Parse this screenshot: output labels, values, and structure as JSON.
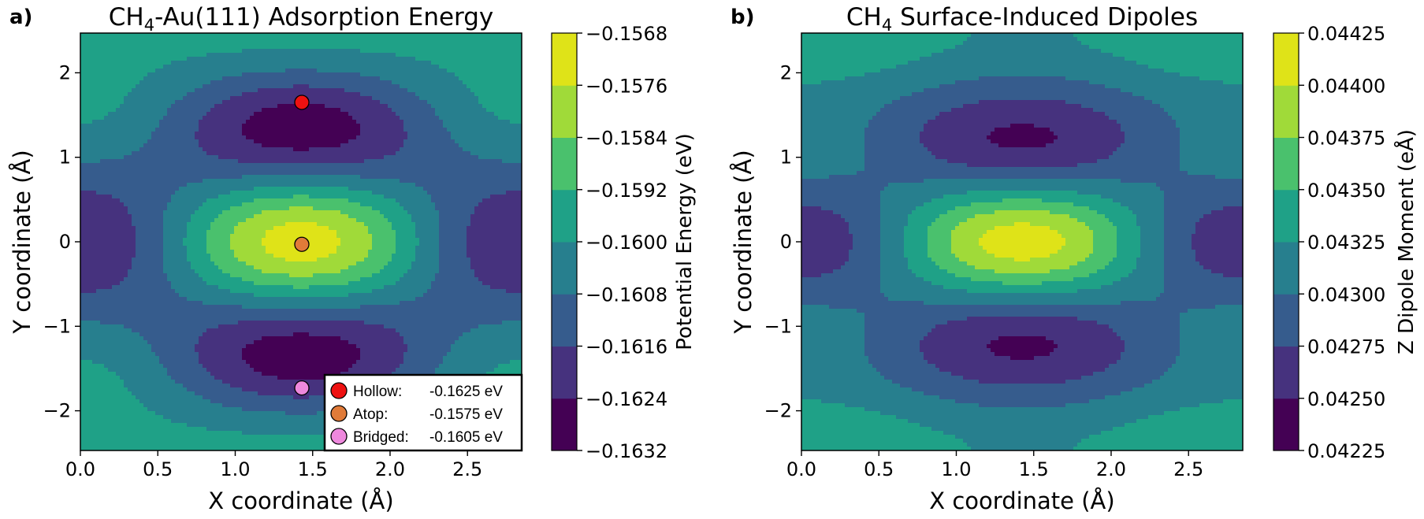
{
  "chart_data": [
    {
      "type": "heatmap",
      "panel_label": "a)",
      "title_prefix": "CH",
      "title_sub": "4",
      "title_suffix": "-Au(111) Adsorption Energy",
      "xlabel": "X coordinate (Å)",
      "ylabel": "Y coordinate (Å)",
      "xlim": [
        0.0,
        2.85
      ],
      "ylim": [
        -2.47,
        2.47
      ],
      "xticks": [
        0.0,
        0.5,
        1.0,
        1.5,
        2.0,
        2.5
      ],
      "xtick_labels": [
        "0.0",
        "0.5",
        "1.0",
        "1.5",
        "2.0",
        "2.5"
      ],
      "yticks": [
        -2,
        -1,
        0,
        1,
        2
      ],
      "ytick_labels": [
        "−2",
        "−1",
        "0",
        "1",
        "2"
      ],
      "colorbar": {
        "label": "Potential Energy (eV)",
        "levels": [
          -0.1632,
          -0.1624,
          -0.1616,
          -0.1608,
          -0.16,
          -0.1592,
          -0.1584,
          -0.1576,
          -0.1568
        ],
        "tick_labels": [
          "−0.1632",
          "−0.1624",
          "−0.1616",
          "−0.1608",
          "−0.1600",
          "−0.1592",
          "−0.1584",
          "−0.1576",
          "−0.1568"
        ]
      },
      "field": {
        "base": -0.16035,
        "amp": 0.00288,
        "x_period": 2.85,
        "y_period": 4.94,
        "mode": "energy"
      },
      "points": [
        {
          "name": "Hollow",
          "x": 1.43,
          "y": 1.65,
          "color": "#ee1111"
        },
        {
          "name": "Atop",
          "x": 1.43,
          "y": -0.03,
          "color": "#e07b39"
        },
        {
          "name": "Bridged",
          "x": 1.43,
          "y": -1.73,
          "color": "#ee88dd"
        }
      ],
      "legend": {
        "placement": "lower-right",
        "entries": [
          {
            "name": "Hollow:",
            "value": "-0.1625 eV",
            "color": "#ee1111"
          },
          {
            "name": "Atop:",
            "value": "-0.1575 eV",
            "color": "#e07b39"
          },
          {
            "name": "Bridged:",
            "value": "-0.1605 eV",
            "color": "#ee88dd"
          }
        ]
      }
    },
    {
      "type": "heatmap",
      "panel_label": "b)",
      "title_prefix": "CH",
      "title_sub": "4",
      "title_suffix": " Surface-Induced Dipoles",
      "xlabel": "X coordinate (Å)",
      "ylabel": "Y coordinate (Å)",
      "xlim": [
        0.0,
        2.85
      ],
      "ylim": [
        -2.47,
        2.47
      ],
      "xticks": [
        0.0,
        0.5,
        1.0,
        1.5,
        2.0,
        2.5
      ],
      "xtick_labels": [
        "0.0",
        "0.5",
        "1.0",
        "1.5",
        "2.0",
        "2.5"
      ],
      "yticks": [
        -2,
        -1,
        0,
        1,
        2
      ],
      "ytick_labels": [
        "−2",
        "−1",
        "0",
        "1",
        "2"
      ],
      "colorbar": {
        "label": "Z Dipole Moment (eÅ)",
        "levels": [
          0.04225,
          0.0425,
          0.04275,
          0.043,
          0.04325,
          0.0435,
          0.04375,
          0.044,
          0.04425
        ],
        "tick_labels": [
          "0.04225",
          "0.04250",
          "0.04275",
          "0.04300",
          "0.04325",
          "0.04350",
          "0.04375",
          "0.04400",
          "0.04425"
        ]
      },
      "field": {
        "base": 0.04318,
        "amp": 0.00092,
        "x_period": 2.85,
        "y_period": 4.94,
        "mode": "dipole"
      },
      "points": [],
      "legend": null
    }
  ],
  "colormap": [
    "#440154",
    "#46327e",
    "#365c8d",
    "#277f8e",
    "#1fa187",
    "#4ac16d",
    "#a0da39",
    "#dfe318"
  ]
}
